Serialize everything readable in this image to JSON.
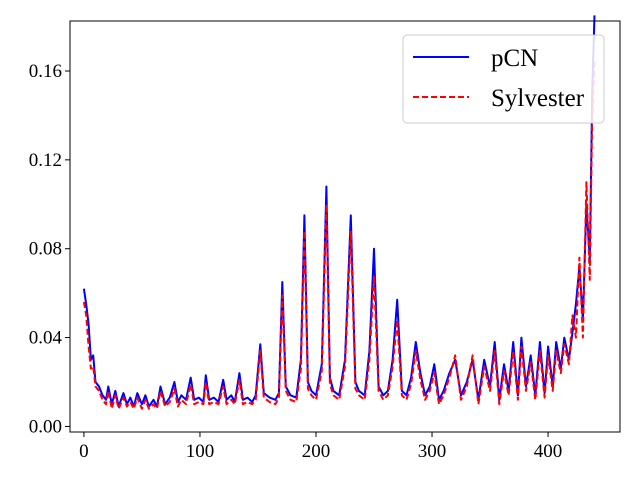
{
  "chart_data": {
    "type": "line",
    "title": "",
    "xlabel": "",
    "ylabel": "",
    "xlim": [
      -12,
      462
    ],
    "ylim": [
      -0.0025,
      0.1825
    ],
    "xticks": [
      0,
      100,
      200,
      300,
      400
    ],
    "xtick_labels": [
      "0",
      "100",
      "200",
      "300",
      "400"
    ],
    "yticks": [
      0.0,
      0.04,
      0.08,
      0.12,
      0.16
    ],
    "ytick_labels": [
      "0.00",
      "0.04",
      "0.08",
      "0.12",
      "0.16"
    ],
    "grid": false,
    "legend": "top-right",
    "series": [
      {
        "name": "pCN",
        "color": "#0000ff",
        "style": "solid",
        "points": [
          [
            0,
            0.062
          ],
          [
            2,
            0.055
          ],
          [
            4,
            0.046
          ],
          [
            6,
            0.03
          ],
          [
            8,
            0.032
          ],
          [
            10,
            0.02
          ],
          [
            13,
            0.018
          ],
          [
            16,
            0.014
          ],
          [
            19,
            0.012
          ],
          [
            21,
            0.018
          ],
          [
            24,
            0.01
          ],
          [
            27,
            0.016
          ],
          [
            30,
            0.009
          ],
          [
            34,
            0.015
          ],
          [
            37,
            0.01
          ],
          [
            40,
            0.013
          ],
          [
            43,
            0.009
          ],
          [
            46,
            0.015
          ],
          [
            50,
            0.01
          ],
          [
            53,
            0.014
          ],
          [
            56,
            0.009
          ],
          [
            60,
            0.012
          ],
          [
            63,
            0.009
          ],
          [
            66,
            0.018
          ],
          [
            70,
            0.01
          ],
          [
            74,
            0.013
          ],
          [
            78,
            0.02
          ],
          [
            81,
            0.011
          ],
          [
            84,
            0.014
          ],
          [
            88,
            0.012
          ],
          [
            92,
            0.022
          ],
          [
            95,
            0.012
          ],
          [
            99,
            0.013
          ],
          [
            103,
            0.011
          ],
          [
            105,
            0.023
          ],
          [
            108,
            0.012
          ],
          [
            112,
            0.013
          ],
          [
            116,
            0.011
          ],
          [
            120,
            0.021
          ],
          [
            123,
            0.012
          ],
          [
            127,
            0.014
          ],
          [
            130,
            0.011
          ],
          [
            134,
            0.024
          ],
          [
            137,
            0.012
          ],
          [
            141,
            0.013
          ],
          [
            145,
            0.011
          ],
          [
            148,
            0.014
          ],
          [
            152,
            0.037
          ],
          [
            155,
            0.015
          ],
          [
            160,
            0.013
          ],
          [
            165,
            0.012
          ],
          [
            168,
            0.015
          ],
          [
            171,
            0.065
          ],
          [
            174,
            0.018
          ],
          [
            178,
            0.014
          ],
          [
            183,
            0.013
          ],
          [
            187,
            0.03
          ],
          [
            190,
            0.095
          ],
          [
            193,
            0.02
          ],
          [
            196,
            0.016
          ],
          [
            200,
            0.014
          ],
          [
            205,
            0.028
          ],
          [
            209,
            0.108
          ],
          [
            212,
            0.022
          ],
          [
            215,
            0.016
          ],
          [
            220,
            0.014
          ],
          [
            225,
            0.03
          ],
          [
            230,
            0.095
          ],
          [
            234,
            0.02
          ],
          [
            237,
            0.016
          ],
          [
            242,
            0.014
          ],
          [
            246,
            0.034
          ],
          [
            250,
            0.08
          ],
          [
            254,
            0.018
          ],
          [
            258,
            0.014
          ],
          [
            262,
            0.016
          ],
          [
            266,
            0.03
          ],
          [
            270,
            0.057
          ],
          [
            274,
            0.016
          ],
          [
            278,
            0.014
          ],
          [
            282,
            0.022
          ],
          [
            286,
            0.038
          ],
          [
            290,
            0.024
          ],
          [
            294,
            0.014
          ],
          [
            298,
            0.018
          ],
          [
            302,
            0.028
          ],
          [
            306,
            0.012
          ],
          [
            310,
            0.016
          ],
          [
            315,
            0.024
          ],
          [
            320,
            0.03
          ],
          [
            325,
            0.014
          ],
          [
            330,
            0.02
          ],
          [
            335,
            0.03
          ],
          [
            340,
            0.012
          ],
          [
            345,
            0.03
          ],
          [
            350,
            0.018
          ],
          [
            354,
            0.038
          ],
          [
            358,
            0.012
          ],
          [
            362,
            0.028
          ],
          [
            366,
            0.016
          ],
          [
            370,
            0.038
          ],
          [
            374,
            0.014
          ],
          [
            377,
            0.04
          ],
          [
            381,
            0.018
          ],
          [
            385,
            0.032
          ],
          [
            389,
            0.014
          ],
          [
            393,
            0.038
          ],
          [
            397,
            0.015
          ],
          [
            400,
            0.036
          ],
          [
            404,
            0.018
          ],
          [
            407,
            0.038
          ],
          [
            411,
            0.026
          ],
          [
            414,
            0.04
          ],
          [
            418,
            0.03
          ],
          [
            421,
            0.042
          ],
          [
            424,
            0.055
          ],
          [
            427,
            0.072
          ],
          [
            430,
            0.048
          ],
          [
            433,
            0.1
          ],
          [
            436,
            0.075
          ],
          [
            438,
            0.15
          ],
          [
            440,
            0.185
          ]
        ]
      },
      {
        "name": "Sylvester",
        "color": "#ff0000",
        "style": "dashed",
        "points": [
          [
            0,
            0.056
          ],
          [
            2,
            0.05
          ],
          [
            4,
            0.036
          ],
          [
            6,
            0.026
          ],
          [
            8,
            0.027
          ],
          [
            10,
            0.018
          ],
          [
            13,
            0.016
          ],
          [
            16,
            0.012
          ],
          [
            19,
            0.01
          ],
          [
            21,
            0.016
          ],
          [
            24,
            0.008
          ],
          [
            27,
            0.014
          ],
          [
            30,
            0.008
          ],
          [
            34,
            0.013
          ],
          [
            37,
            0.009
          ],
          [
            40,
            0.011
          ],
          [
            43,
            0.008
          ],
          [
            46,
            0.013
          ],
          [
            50,
            0.008
          ],
          [
            53,
            0.012
          ],
          [
            56,
            0.008
          ],
          [
            60,
            0.01
          ],
          [
            63,
            0.008
          ],
          [
            66,
            0.016
          ],
          [
            70,
            0.009
          ],
          [
            74,
            0.011
          ],
          [
            78,
            0.017
          ],
          [
            81,
            0.009
          ],
          [
            84,
            0.012
          ],
          [
            88,
            0.01
          ],
          [
            92,
            0.019
          ],
          [
            95,
            0.01
          ],
          [
            99,
            0.011
          ],
          [
            103,
            0.01
          ],
          [
            105,
            0.02
          ],
          [
            108,
            0.01
          ],
          [
            112,
            0.011
          ],
          [
            116,
            0.01
          ],
          [
            120,
            0.018
          ],
          [
            123,
            0.01
          ],
          [
            127,
            0.012
          ],
          [
            130,
            0.01
          ],
          [
            134,
            0.021
          ],
          [
            137,
            0.01
          ],
          [
            141,
            0.011
          ],
          [
            145,
            0.01
          ],
          [
            148,
            0.012
          ],
          [
            152,
            0.034
          ],
          [
            155,
            0.013
          ],
          [
            160,
            0.011
          ],
          [
            165,
            0.01
          ],
          [
            168,
            0.013
          ],
          [
            171,
            0.059
          ],
          [
            174,
            0.016
          ],
          [
            178,
            0.012
          ],
          [
            183,
            0.011
          ],
          [
            187,
            0.026
          ],
          [
            190,
            0.088
          ],
          [
            193,
            0.017
          ],
          [
            196,
            0.014
          ],
          [
            200,
            0.012
          ],
          [
            205,
            0.025
          ],
          [
            209,
            0.1
          ],
          [
            212,
            0.019
          ],
          [
            215,
            0.014
          ],
          [
            220,
            0.012
          ],
          [
            225,
            0.027
          ],
          [
            230,
            0.088
          ],
          [
            234,
            0.017
          ],
          [
            237,
            0.014
          ],
          [
            242,
            0.012
          ],
          [
            246,
            0.03
          ],
          [
            250,
            0.068
          ],
          [
            254,
            0.016
          ],
          [
            258,
            0.012
          ],
          [
            262,
            0.014
          ],
          [
            266,
            0.027
          ],
          [
            270,
            0.048
          ],
          [
            274,
            0.014
          ],
          [
            278,
            0.012
          ],
          [
            282,
            0.019
          ],
          [
            286,
            0.034
          ],
          [
            290,
            0.021
          ],
          [
            294,
            0.012
          ],
          [
            298,
            0.016
          ],
          [
            302,
            0.024
          ],
          [
            306,
            0.01
          ],
          [
            310,
            0.014
          ],
          [
            315,
            0.022
          ],
          [
            320,
            0.032
          ],
          [
            325,
            0.012
          ],
          [
            330,
            0.018
          ],
          [
            335,
            0.032
          ],
          [
            340,
            0.01
          ],
          [
            345,
            0.027
          ],
          [
            350,
            0.016
          ],
          [
            354,
            0.034
          ],
          [
            358,
            0.01
          ],
          [
            362,
            0.025
          ],
          [
            366,
            0.014
          ],
          [
            370,
            0.034
          ],
          [
            374,
            0.012
          ],
          [
            377,
            0.036
          ],
          [
            381,
            0.016
          ],
          [
            385,
            0.029
          ],
          [
            389,
            0.012
          ],
          [
            393,
            0.034
          ],
          [
            397,
            0.013
          ],
          [
            400,
            0.032
          ],
          [
            404,
            0.016
          ],
          [
            407,
            0.034
          ],
          [
            411,
            0.024
          ],
          [
            414,
            0.037
          ],
          [
            418,
            0.028
          ],
          [
            421,
            0.05
          ],
          [
            424,
            0.04
          ],
          [
            427,
            0.076
          ],
          [
            430,
            0.04
          ],
          [
            433,
            0.11
          ],
          [
            436,
            0.066
          ],
          [
            438,
            0.14
          ],
          [
            440,
            0.165
          ]
        ]
      }
    ]
  }
}
